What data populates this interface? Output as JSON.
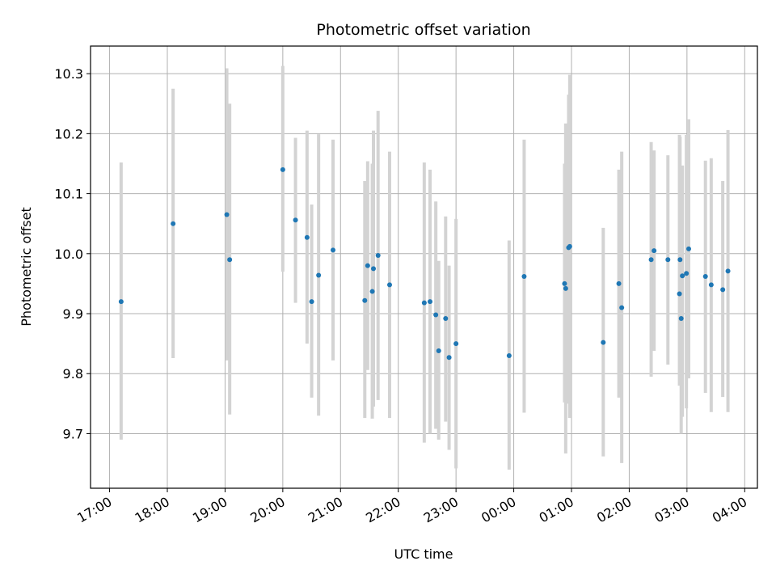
{
  "chart_data": {
    "type": "scatter",
    "title": "Photometric offset variation",
    "xlabel": "UTC time",
    "ylabel": "Photometric offset",
    "x_unit": "hours",
    "x_ticks": [
      "17:00",
      "18:00",
      "19:00",
      "20:00",
      "21:00",
      "22:00",
      "23:00",
      "00:00",
      "01:00",
      "02:00",
      "03:00",
      "04:00"
    ],
    "xlim": [
      16.67,
      28.22
    ],
    "y_ticks": [
      "9.7",
      "9.8",
      "9.9",
      "10.0",
      "10.1",
      "10.2",
      "10.3"
    ],
    "ylim": [
      9.609,
      10.346
    ],
    "grid": true,
    "colors": {
      "point": "#1f77b4",
      "errorbar": "#d3d3d3",
      "grid": "#b0b0b0",
      "axis": "#000000"
    },
    "points": [
      {
        "x": 17.2,
        "y": 9.92,
        "lo": 9.69,
        "hi": 10.152
      },
      {
        "x": 18.1,
        "y": 10.05,
        "lo": 9.826,
        "hi": 10.275
      },
      {
        "x": 19.03,
        "y": 10.065,
        "lo": 9.822,
        "hi": 10.309
      },
      {
        "x": 19.08,
        "y": 9.99,
        "lo": 9.732,
        "hi": 10.25
      },
      {
        "x": 20.0,
        "y": 10.14,
        "lo": 9.97,
        "hi": 10.313
      },
      {
        "x": 20.22,
        "y": 10.056,
        "lo": 9.918,
        "hi": 10.193
      },
      {
        "x": 20.42,
        "y": 10.027,
        "lo": 9.85,
        "hi": 10.205
      },
      {
        "x": 20.5,
        "y": 9.92,
        "lo": 9.76,
        "hi": 10.082
      },
      {
        "x": 20.62,
        "y": 9.964,
        "lo": 9.73,
        "hi": 10.199
      },
      {
        "x": 20.87,
        "y": 10.006,
        "lo": 9.822,
        "hi": 10.19
      },
      {
        "x": 21.42,
        "y": 9.922,
        "lo": 9.726,
        "hi": 10.121
      },
      {
        "x": 21.47,
        "y": 9.98,
        "lo": 9.806,
        "hi": 10.154
      },
      {
        "x": 21.55,
        "y": 9.937,
        "lo": 9.725,
        "hi": 10.15
      },
      {
        "x": 21.57,
        "y": 9.975,
        "lo": 9.745,
        "hi": 10.205
      },
      {
        "x": 21.65,
        "y": 9.997,
        "lo": 9.756,
        "hi": 10.238
      },
      {
        "x": 21.85,
        "y": 9.948,
        "lo": 9.726,
        "hi": 10.17
      },
      {
        "x": 22.45,
        "y": 9.918,
        "lo": 9.685,
        "hi": 10.152
      },
      {
        "x": 22.55,
        "y": 9.92,
        "lo": 9.7,
        "hi": 10.14
      },
      {
        "x": 22.65,
        "y": 9.898,
        "lo": 9.708,
        "hi": 10.087
      },
      {
        "x": 22.7,
        "y": 9.838,
        "lo": 9.69,
        "hi": 9.988
      },
      {
        "x": 22.82,
        "y": 9.892,
        "lo": 9.72,
        "hi": 10.062
      },
      {
        "x": 22.88,
        "y": 9.827,
        "lo": 9.673,
        "hi": 9.98
      },
      {
        "x": 23.0,
        "y": 9.85,
        "lo": 9.642,
        "hi": 10.058
      },
      {
        "x": 23.92,
        "y": 9.83,
        "lo": 9.64,
        "hi": 10.022
      },
      {
        "x": 24.18,
        "y": 9.962,
        "lo": 9.735,
        "hi": 10.19
      },
      {
        "x": 24.88,
        "y": 9.95,
        "lo": 9.752,
        "hi": 10.15
      },
      {
        "x": 24.9,
        "y": 9.942,
        "lo": 9.667,
        "hi": 10.217
      },
      {
        "x": 24.95,
        "y": 10.01,
        "lo": 9.75,
        "hi": 10.265
      },
      {
        "x": 24.97,
        "y": 10.012,
        "lo": 9.726,
        "hi": 10.298
      },
      {
        "x": 25.55,
        "y": 9.852,
        "lo": 9.662,
        "hi": 10.043
      },
      {
        "x": 25.82,
        "y": 9.95,
        "lo": 9.76,
        "hi": 10.14
      },
      {
        "x": 25.87,
        "y": 9.91,
        "lo": 9.651,
        "hi": 10.17
      },
      {
        "x": 26.38,
        "y": 9.99,
        "lo": 9.795,
        "hi": 10.186
      },
      {
        "x": 26.43,
        "y": 10.005,
        "lo": 9.838,
        "hi": 10.172
      },
      {
        "x": 26.67,
        "y": 9.99,
        "lo": 9.815,
        "hi": 10.164
      },
      {
        "x": 26.87,
        "y": 9.933,
        "lo": 9.78,
        "hi": 10.198
      },
      {
        "x": 26.88,
        "y": 9.99,
        "lo": 9.785,
        "hi": 10.195
      },
      {
        "x": 26.9,
        "y": 9.892,
        "lo": 9.7,
        "hi": 10.085
      },
      {
        "x": 26.92,
        "y": 9.963,
        "lo": 9.728,
        "hi": 10.147
      },
      {
        "x": 26.99,
        "y": 9.967,
        "lo": 9.742,
        "hi": 10.198
      },
      {
        "x": 27.03,
        "y": 10.008,
        "lo": 9.792,
        "hi": 10.224
      },
      {
        "x": 27.32,
        "y": 9.962,
        "lo": 9.768,
        "hi": 10.155
      },
      {
        "x": 27.42,
        "y": 9.948,
        "lo": 9.736,
        "hi": 10.159
      },
      {
        "x": 27.62,
        "y": 9.94,
        "lo": 9.761,
        "hi": 10.121
      },
      {
        "x": 27.71,
        "y": 9.971,
        "lo": 9.736,
        "hi": 10.206
      }
    ]
  }
}
